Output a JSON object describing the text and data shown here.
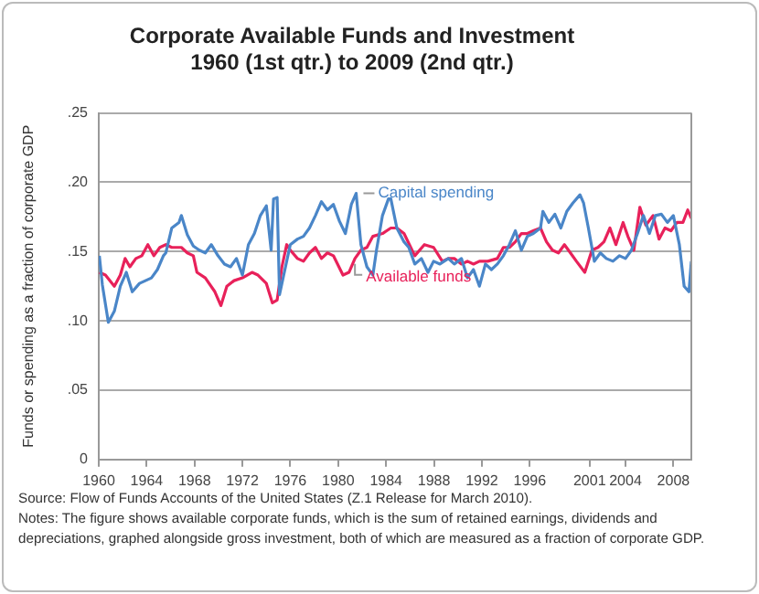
{
  "chart_data": {
    "type": "line",
    "title": "Corporate Available Funds and Investment\n1960 (1st qtr.) to 2009 (2nd qtr.)",
    "ylabel": "Funds or spending as a fraction of corporate GDP",
    "xlim": [
      1960,
      2009.5
    ],
    "xticks": [
      1960,
      1964,
      1968,
      1972,
      1976,
      1980,
      1984,
      1988,
      1992,
      1996,
      2001,
      2004,
      2008
    ],
    "ylim": [
      0,
      0.25
    ],
    "yticks": [
      {
        "value": 0,
        "label": "0"
      },
      {
        "value": 0.05,
        "label": ".05"
      },
      {
        "value": 0.1,
        "label": ".10"
      },
      {
        "value": 0.15,
        "label": ".15"
      },
      {
        "value": 0.2,
        "label": ".20"
      },
      {
        "value": 0.25,
        "label": ".25"
      }
    ],
    "grid": "y",
    "legend": false,
    "marker": "none",
    "line_style": "solid",
    "series": [
      {
        "name": "Capital spending",
        "color": "#4a86c8",
        "x": [
          1960.05,
          1960.3,
          1960.8,
          1961.3,
          1961.8,
          1962.3,
          1962.8,
          1963.4,
          1963.9,
          1964.4,
          1964.9,
          1965.4,
          1965.6,
          1966.1,
          1966.7,
          1966.9,
          1967.4,
          1967.9,
          1968.4,
          1968.9,
          1969.4,
          1969.96,
          1970.5,
          1971,
          1971.5,
          1972,
          1972.5,
          1973,
          1973.5,
          1974,
          1974.4,
          1974.6,
          1974.9,
          1975.1,
          1975.5,
          1976,
          1976.6,
          1977.1,
          1977.6,
          1978.1,
          1978.6,
          1979.1,
          1979.6,
          1980.1,
          1980.6,
          1981.1,
          1981.5,
          1981.9,
          1982.4,
          1982.9,
          1983.2,
          1983.7,
          1984.2,
          1984.4,
          1984.9,
          1985.5,
          1985.9,
          1986.4,
          1986.95,
          1987.5,
          1987.97,
          1988.5,
          1989.2,
          1989.7,
          1990.3,
          1990.8,
          1991.3,
          1991.8,
          1992.3,
          1992.8,
          1993.3,
          1993.8,
          1994.3,
          1994.8,
          1995.3,
          1995.8,
          1996.3,
          1996.9,
          1997.1,
          1997.6,
          1998.1,
          1998.6,
          1999.1,
          1999.6,
          2000.2,
          2000.5,
          2000.9,
          2001.4,
          2001.9,
          2002.4,
          2002.95,
          2003.5,
          2004,
          2004.5,
          2005,
          2005.5,
          2006,
          2006.5,
          2007,
          2007.5,
          2008,
          2008.5,
          2008.9,
          2009.3,
          2009.5
        ],
        "values": [
          0.147,
          0.126,
          0.099,
          0.107,
          0.125,
          0.135,
          0.121,
          0.127,
          0.129,
          0.131,
          0.137,
          0.147,
          0.149,
          0.167,
          0.171,
          0.176,
          0.162,
          0.154,
          0.151,
          0.149,
          0.155,
          0.147,
          0.141,
          0.139,
          0.145,
          0.133,
          0.155,
          0.163,
          0.176,
          0.183,
          0.151,
          0.188,
          0.189,
          0.119,
          0.135,
          0.155,
          0.159,
          0.161,
          0.167,
          0.176,
          0.186,
          0.18,
          0.184,
          0.172,
          0.163,
          0.184,
          0.192,
          0.155,
          0.139,
          0.133,
          0.151,
          0.176,
          0.188,
          0.188,
          0.167,
          0.157,
          0.153,
          0.141,
          0.145,
          0.135,
          0.143,
          0.141,
          0.145,
          0.141,
          0.145,
          0.131,
          0.137,
          0.125,
          0.141,
          0.137,
          0.141,
          0.147,
          0.155,
          0.165,
          0.151,
          0.161,
          0.163,
          0.167,
          0.179,
          0.171,
          0.177,
          0.167,
          0.179,
          0.185,
          0.191,
          0.185,
          0.167,
          0.143,
          0.149,
          0.145,
          0.143,
          0.147,
          0.145,
          0.151,
          0.163,
          0.176,
          0.163,
          0.176,
          0.177,
          0.171,
          0.176,
          0.155,
          0.125,
          0.121,
          0.143
        ]
      },
      {
        "name": "Available funds",
        "color": "#e8215a",
        "x": [
          1960.05,
          1960.56,
          1961.3,
          1961.8,
          1962.2,
          1962.6,
          1963.1,
          1963.6,
          1964.1,
          1964.6,
          1965.1,
          1965.6,
          1966.1,
          1966.9,
          1967.4,
          1967.9,
          1968.2,
          1968.9,
          1969.7,
          1970.2,
          1970.7,
          1971.3,
          1972,
          1972.8,
          1973.3,
          1974,
          1974.5,
          1974.9,
          1975.3,
          1975.7,
          1976,
          1976.6,
          1977.1,
          1977.6,
          1978.1,
          1978.6,
          1979.1,
          1979.6,
          1980.4,
          1980.9,
          1981.4,
          1981.9,
          1982.4,
          1982.9,
          1983.7,
          1984.4,
          1984.9,
          1985.5,
          1986.4,
          1987.2,
          1987.97,
          1988.7,
          1989.2,
          1989.7,
          1990.3,
          1990.8,
          1991.3,
          1991.8,
          1992.5,
          1993.3,
          1993.8,
          1994.3,
          1994.8,
          1995.3,
          1995.8,
          1996.3,
          1996.9,
          1997.4,
          1997.9,
          1998.4,
          1998.9,
          1999.4,
          1999.9,
          2000.6,
          2001.2,
          2001.7,
          2002.2,
          2002.7,
          2003.2,
          2003.8,
          2004.2,
          2004.7,
          2005.2,
          2005.7,
          2006.3,
          2006.8,
          2007.3,
          2007.8,
          2008.3,
          2008.8,
          2009.2,
          2009.5
        ],
        "values": [
          0.135,
          0.133,
          0.125,
          0.133,
          0.145,
          0.139,
          0.145,
          0.147,
          0.155,
          0.147,
          0.153,
          0.155,
          0.153,
          0.153,
          0.149,
          0.147,
          0.135,
          0.131,
          0.121,
          0.111,
          0.125,
          0.129,
          0.131,
          0.135,
          0.133,
          0.127,
          0.113,
          0.115,
          0.139,
          0.155,
          0.151,
          0.145,
          0.143,
          0.149,
          0.153,
          0.145,
          0.149,
          0.147,
          0.133,
          0.135,
          0.145,
          0.151,
          0.153,
          0.161,
          0.163,
          0.167,
          0.167,
          0.163,
          0.147,
          0.155,
          0.153,
          0.143,
          0.145,
          0.145,
          0.141,
          0.143,
          0.141,
          0.143,
          0.143,
          0.145,
          0.153,
          0.153,
          0.157,
          0.163,
          0.163,
          0.165,
          0.167,
          0.157,
          0.151,
          0.149,
          0.155,
          0.149,
          0.143,
          0.135,
          0.151,
          0.153,
          0.157,
          0.167,
          0.155,
          0.171,
          0.161,
          0.151,
          0.182,
          0.169,
          0.176,
          0.159,
          0.167,
          0.165,
          0.171,
          0.171,
          0.18,
          0.174
        ]
      }
    ],
    "annotations": [
      "Source: Flow of Funds Accounts of the United States (Z.1 Release for March 2010).",
      "Notes: The figure shows available corporate funds, which is the sum of retained earnings, dividends and depreciations, graphed alongside gross investment, both of which are measured as a fraction of corporate GDP."
    ]
  }
}
